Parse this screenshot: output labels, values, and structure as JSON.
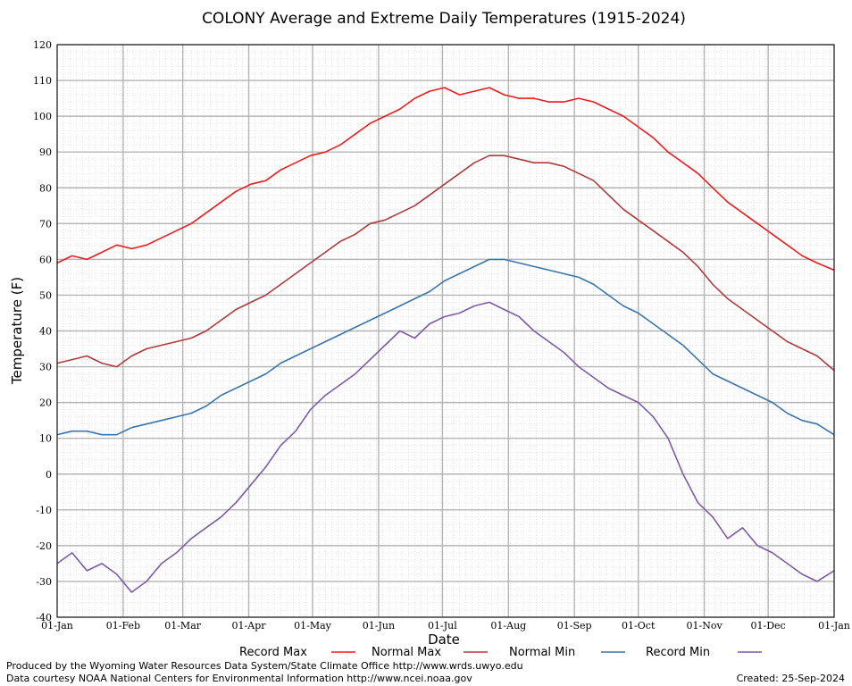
{
  "chart_data": {
    "type": "line",
    "title": "COLONY Average and Extreme Daily Temperatures (1915-2024)",
    "xlabel": "Date",
    "ylabel": "Temperature (F)",
    "ylim": [
      -40,
      120
    ],
    "yticks": [
      -40,
      -30,
      -20,
      -10,
      0,
      10,
      20,
      30,
      40,
      50,
      60,
      70,
      80,
      90,
      100,
      110,
      120
    ],
    "x_ticks": [
      {
        "day": 0,
        "label": "01-Jan"
      },
      {
        "day": 31,
        "label": "01-Feb"
      },
      {
        "day": 59,
        "label": "01-Mar"
      },
      {
        "day": 90,
        "label": "01-Apr"
      },
      {
        "day": 120,
        "label": "01-May"
      },
      {
        "day": 151,
        "label": "01-Jun"
      },
      {
        "day": 181,
        "label": "01-Jul"
      },
      {
        "day": 212,
        "label": "01-Aug"
      },
      {
        "day": 243,
        "label": "01-Sep"
      },
      {
        "day": 273,
        "label": "01-Oct"
      },
      {
        "day": 304,
        "label": "01-Nov"
      },
      {
        "day": 334,
        "label": "01-Dec"
      },
      {
        "day": 365,
        "label": "01-Jan"
      }
    ],
    "xlim": [
      0,
      365
    ],
    "grid": true,
    "legend_position": "bottom",
    "series": [
      {
        "name": "Record Max",
        "color": "#ee1c1c",
        "x": [
          0,
          7,
          14,
          21,
          28,
          35,
          42,
          49,
          56,
          63,
          70,
          77,
          84,
          91,
          98,
          105,
          112,
          119,
          126,
          133,
          140,
          147,
          154,
          161,
          168,
          175,
          182,
          189,
          196,
          203,
          210,
          217,
          224,
          231,
          238,
          245,
          252,
          259,
          266,
          273,
          280,
          287,
          294,
          301,
          308,
          315,
          322,
          329,
          336,
          343,
          350,
          357,
          365
        ],
        "values": [
          59,
          61,
          60,
          62,
          64,
          63,
          64,
          66,
          68,
          70,
          73,
          76,
          79,
          81,
          82,
          85,
          87,
          89,
          90,
          92,
          95,
          98,
          100,
          102,
          105,
          107,
          108,
          106,
          107,
          108,
          106,
          105,
          105,
          104,
          104,
          105,
          104,
          102,
          100,
          97,
          94,
          90,
          87,
          84,
          80,
          76,
          73,
          70,
          67,
          64,
          61,
          59,
          57
        ]
      },
      {
        "name": "Normal Max",
        "color": "#b03a3a",
        "x": [
          0,
          7,
          14,
          21,
          28,
          35,
          42,
          49,
          56,
          63,
          70,
          77,
          84,
          91,
          98,
          105,
          112,
          119,
          126,
          133,
          140,
          147,
          154,
          161,
          168,
          175,
          182,
          189,
          196,
          203,
          210,
          217,
          224,
          231,
          238,
          245,
          252,
          259,
          266,
          273,
          280,
          287,
          294,
          301,
          308,
          315,
          322,
          329,
          336,
          343,
          350,
          357,
          365
        ],
        "values": [
          31,
          32,
          33,
          31,
          30,
          33,
          35,
          36,
          37,
          38,
          40,
          43,
          46,
          48,
          50,
          53,
          56,
          59,
          62,
          65,
          67,
          70,
          71,
          73,
          75,
          78,
          81,
          84,
          87,
          89,
          89,
          88,
          87,
          87,
          86,
          84,
          82,
          78,
          74,
          71,
          68,
          65,
          62,
          58,
          53,
          49,
          46,
          43,
          40,
          37,
          35,
          33,
          29
        ]
      },
      {
        "name": "Normal Min",
        "color": "#3a74ad",
        "x": [
          0,
          7,
          14,
          21,
          28,
          35,
          42,
          49,
          56,
          63,
          70,
          77,
          84,
          91,
          98,
          105,
          112,
          119,
          126,
          133,
          140,
          147,
          154,
          161,
          168,
          175,
          182,
          189,
          196,
          203,
          210,
          217,
          224,
          231,
          238,
          245,
          252,
          259,
          266,
          273,
          280,
          287,
          294,
          301,
          308,
          315,
          322,
          329,
          336,
          343,
          350,
          357,
          365
        ],
        "values": [
          11,
          12,
          12,
          11,
          11,
          13,
          14,
          15,
          16,
          17,
          19,
          22,
          24,
          26,
          28,
          31,
          33,
          35,
          37,
          39,
          41,
          43,
          45,
          47,
          49,
          51,
          54,
          56,
          58,
          60,
          60,
          59,
          58,
          57,
          56,
          55,
          53,
          50,
          47,
          45,
          42,
          39,
          36,
          32,
          28,
          26,
          24,
          22,
          20,
          17,
          15,
          14,
          11
        ]
      },
      {
        "name": "Record Min",
        "color": "#7b5aa6",
        "x": [
          0,
          7,
          14,
          21,
          28,
          35,
          42,
          49,
          56,
          63,
          70,
          77,
          84,
          91,
          98,
          105,
          112,
          119,
          126,
          133,
          140,
          147,
          154,
          161,
          168,
          175,
          182,
          189,
          196,
          203,
          210,
          217,
          224,
          231,
          238,
          245,
          252,
          259,
          266,
          273,
          280,
          287,
          294,
          301,
          308,
          315,
          322,
          329,
          336,
          343,
          350,
          357,
          365
        ],
        "values": [
          -25,
          -22,
          -27,
          -25,
          -28,
          -33,
          -30,
          -25,
          -22,
          -18,
          -15,
          -12,
          -8,
          -3,
          2,
          8,
          12,
          18,
          22,
          25,
          28,
          32,
          36,
          40,
          38,
          42,
          44,
          45,
          47,
          48,
          46,
          44,
          40,
          37,
          34,
          30,
          27,
          24,
          22,
          20,
          16,
          10,
          0,
          -8,
          -12,
          -18,
          -15,
          -20,
          -22,
          -25,
          -28,
          -30,
          -27
        ]
      }
    ]
  },
  "legend": [
    {
      "label": "Record Max",
      "color": "#ee1c1c"
    },
    {
      "label": "Normal Max",
      "color": "#b03a3a"
    },
    {
      "label": "Normal Min",
      "color": "#3a74ad"
    },
    {
      "label": "Record Min",
      "color": "#7b5aa6"
    }
  ],
  "footer": {
    "line1": "Produced by the Wyoming Water Resources Data System/State Climate Office http://www.wrds.uwyo.edu",
    "line2": "Data courtesy NOAA National Centers for Environmental Information http://www.ncei.noaa.gov",
    "created": "Created:  25-Sep-2024"
  }
}
